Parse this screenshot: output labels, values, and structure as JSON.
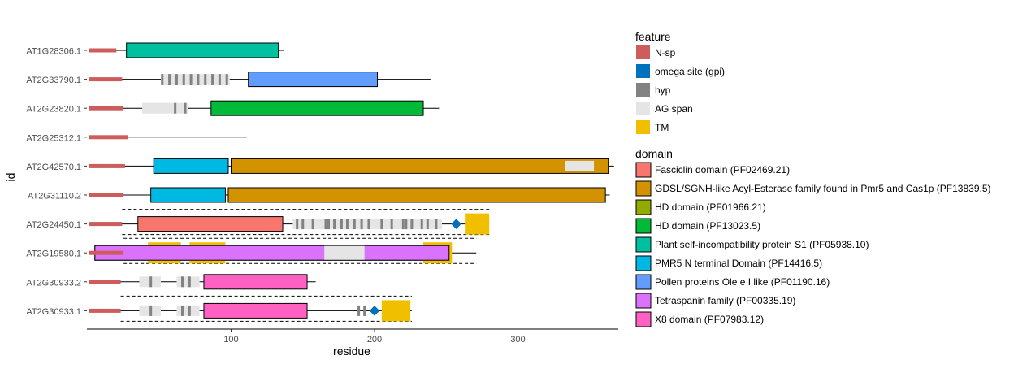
{
  "chart_data": {
    "type": "domain-architecture",
    "xlabel": "residue",
    "ylabel": "id",
    "xlim": [
      0,
      370
    ],
    "xticks": [
      100,
      200,
      300
    ],
    "grid": false,
    "legend_placement": "right",
    "legends": [
      {
        "title": "feature",
        "items": [
          {
            "key": "nsp",
            "label": "N-sp",
            "color": "#CD5C5C"
          },
          {
            "key": "gpi",
            "label": "omega site (gpi)",
            "color": "#0072BD"
          },
          {
            "key": "hyp",
            "label": "hyp",
            "color": "#828282"
          },
          {
            "key": "ag",
            "label": "AG span",
            "color": "#E5E5E5"
          },
          {
            "key": "tm",
            "label": "TM",
            "color": "#F0C000"
          }
        ]
      },
      {
        "title": "domain",
        "items": [
          {
            "key": "fas",
            "label": "Fasciclin domain (PF02469.21)",
            "color": "#F8766D"
          },
          {
            "key": "gdsl",
            "label": "GDSL/SGNH-like Acyl-Esterase family found in Pmr5 and Cas1p (PF13839.5)",
            "color": "#D39200"
          },
          {
            "key": "hd1",
            "label": "HD domain (PF01966.21)",
            "color": "#93AA00"
          },
          {
            "key": "hd2",
            "label": "HD domain (PF13023.5)",
            "color": "#00BA38"
          },
          {
            "key": "psi",
            "label": "Plant self-incompatibility protein S1 (PF05938.10)",
            "color": "#00C19F"
          },
          {
            "key": "pmr5",
            "label": "PMR5 N terminal Domain (PF14416.5)",
            "color": "#00B9E3"
          },
          {
            "key": "ole",
            "label": "Pollen proteins Ole e I like (PF01190.16)",
            "color": "#619CFF"
          },
          {
            "key": "tet",
            "label": "Tetraspanin family (PF00335.19)",
            "color": "#DB72FB"
          },
          {
            "key": "x8",
            "label": "X8 domain (PF07983.12)",
            "color": "#FF61C3"
          }
        ]
      }
    ],
    "proteins": [
      {
        "id": "AT1G28306.1",
        "length": 137,
        "domains": [
          {
            "key": "psi",
            "start": 27,
            "end": 133
          }
        ],
        "nsp": [
          1,
          20
        ],
        "ag": [],
        "hyp": [],
        "tm": [],
        "gpi": null,
        "dashed": false
      },
      {
        "id": "AT2G33790.1",
        "length": 239,
        "domains": [
          {
            "key": "ole",
            "start": 112,
            "end": 202
          }
        ],
        "nsp": [
          1,
          24
        ],
        "ag": [
          [
            51,
            99
          ]
        ],
        "hyp": [
          52,
          57,
          62,
          67,
          72,
          77,
          82,
          87,
          92,
          97
        ],
        "tm": [],
        "gpi": null,
        "dashed": false
      },
      {
        "id": "AT2G23820.1",
        "length": 245,
        "domains": [
          {
            "key": "hd2",
            "start": 86,
            "end": 234
          }
        ],
        "nsp": [
          1,
          25
        ],
        "ag": [
          [
            38,
            70
          ]
        ],
        "hyp": [
          61,
          68
        ],
        "tm": [],
        "gpi": null,
        "dashed": false
      },
      {
        "id": "AT2G25312.1",
        "length": 111,
        "domains": [],
        "nsp": [
          1,
          28
        ],
        "ag": [],
        "hyp": [],
        "tm": [],
        "gpi": null,
        "dashed": false
      },
      {
        "id": "AT2G42570.1",
        "length": 367,
        "domains": [
          {
            "key": "pmr5",
            "start": 46,
            "end": 98
          },
          {
            "key": "gdsl",
            "start": 100,
            "end": 363
          }
        ],
        "nsp": [
          1,
          26
        ],
        "ag": [
          [
            333,
            353
          ]
        ],
        "hyp": [],
        "tm": [],
        "gpi": null,
        "dashed": false
      },
      {
        "id": "AT2G31110.2",
        "length": 364,
        "domains": [
          {
            "key": "pmr5",
            "start": 44,
            "end": 96
          },
          {
            "key": "gdsl",
            "start": 98,
            "end": 361
          }
        ],
        "nsp": [
          1,
          25
        ],
        "ag": [],
        "hyp": [],
        "tm": [],
        "gpi": null,
        "dashed": false
      },
      {
        "id": "AT2G24450.1",
        "length": 280,
        "domains": [
          {
            "key": "fas",
            "start": 35,
            "end": 136
          }
        ],
        "nsp": [
          1,
          24
        ],
        "ag": [
          [
            143,
            247
          ]
        ],
        "hyp": [
          146,
          150,
          157,
          166,
          168,
          172,
          177,
          181,
          186,
          191,
          196,
          205,
          212,
          220,
          222,
          226,
          233,
          237,
          243
        ],
        "tm": [
          [
            263,
            280
          ]
        ],
        "gpi": 257,
        "dashed": true,
        "dash_range": [
          24,
          280
        ]
      },
      {
        "id": "AT2G19580.1",
        "length": 271,
        "domains": [
          {
            "key": "tet",
            "start": 5,
            "end": 252
          }
        ],
        "nsp": [
          1,
          25
        ],
        "ag": [
          [
            165,
            193
          ]
        ],
        "hyp": [],
        "tm": [
          [
            42,
            65
          ],
          [
            71,
            96
          ],
          [
            234,
            254
          ]
        ],
        "gpi": null,
        "dashed": true,
        "dash_range": [
          25,
          271
        ]
      },
      {
        "id": "AT2G30933.2",
        "length": 159,
        "domains": [
          {
            "key": "x8",
            "start": 81,
            "end": 153
          }
        ],
        "nsp": [
          1,
          23
        ],
        "ag": [
          [
            36,
            51
          ],
          [
            62,
            78
          ]
        ],
        "hyp": [
          44,
          66,
          71
        ],
        "tm": [],
        "gpi": null,
        "dashed": false
      },
      {
        "id": "AT2G30933.1",
        "length": 226,
        "domains": [
          {
            "key": "x8",
            "start": 81,
            "end": 153
          }
        ],
        "nsp": [
          1,
          23
        ],
        "ag": [
          [
            36,
            51
          ],
          [
            62,
            78
          ]
        ],
        "hyp": [
          44,
          66,
          71,
          189,
          193
        ],
        "tm": [
          [
            205,
            225
          ]
        ],
        "gpi": 200,
        "dashed": true,
        "dash_range": [
          23,
          226
        ]
      }
    ]
  }
}
